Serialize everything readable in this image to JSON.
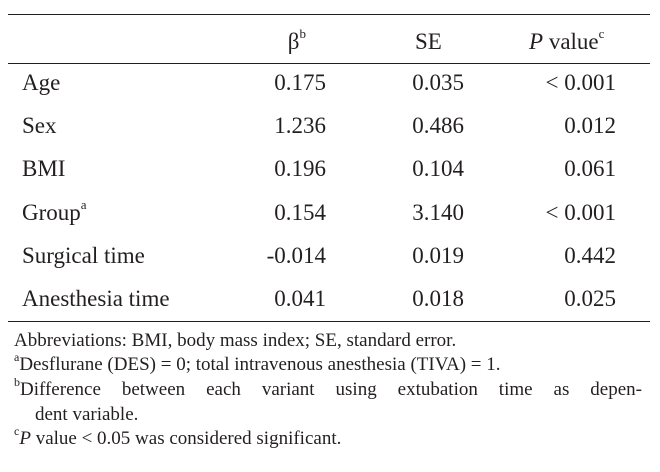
{
  "table": {
    "headers": {
      "beta": "β",
      "beta_sup": "b",
      "se": "SE",
      "p_italic": "P",
      "p_rest": " value",
      "p_sup": "c"
    },
    "rows": [
      {
        "label": "Age",
        "beta": "0.175",
        "se": "0.035",
        "p": "< 0.001"
      },
      {
        "label": "Sex",
        "beta": "1.236",
        "se": "0.486",
        "p": "0.012"
      },
      {
        "label": "BMI",
        "beta": "0.196",
        "se": "0.104",
        "p": "0.061"
      },
      {
        "label": "Group",
        "label_sup": "a",
        "beta": "0.154",
        "se": "3.140",
        "p": "< 0.001"
      },
      {
        "label": "Surgical time",
        "beta": "-0.014",
        "se": "0.019",
        "p": "0.442"
      },
      {
        "label": "Anesthesia time",
        "beta": "0.041",
        "se": "0.018",
        "p": "0.025"
      }
    ]
  },
  "footnotes": {
    "abbreviations": "Abbreviations: BMI, body mass index; SE, standard error.",
    "a_mark": "a",
    "a_text": "Desflurane (DES) = 0; total intravenous anesthesia (TIVA) = 1.",
    "b_mark": "b",
    "b_text_line1": "Difference between each variant using extubation time as depen-",
    "b_text_line2": "dent variable.",
    "c_mark": "c",
    "c_italic": "P",
    "c_text": " value < 0.05 was considered significant."
  }
}
